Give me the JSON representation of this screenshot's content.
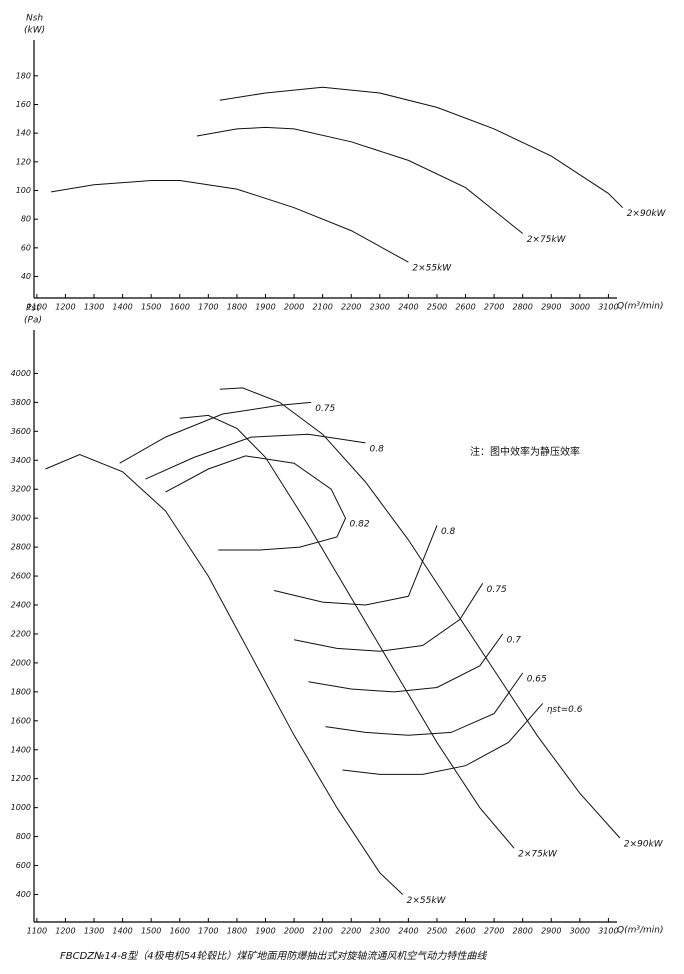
{
  "chart_data": [
    {
      "type": "line",
      "ylabel": "Nsh",
      "yunit": "(kW)",
      "xlabel": "Q(m³/min)",
      "xlim": [
        1090,
        3130
      ],
      "ylim": [
        25,
        205
      ],
      "xticks": [
        1100,
        1200,
        1300,
        1400,
        1500,
        1600,
        1700,
        1800,
        1900,
        2000,
        2100,
        2200,
        2300,
        2400,
        2500,
        2600,
        2700,
        2800,
        2900,
        3000,
        3100
      ],
      "yticks": [
        40,
        60,
        80,
        100,
        120,
        140,
        160,
        180
      ],
      "grid": false,
      "series": [
        {
          "name": "2×55kW",
          "color": "#111",
          "x": [
            1150,
            1300,
            1500,
            1600,
            1800,
            2000,
            2200,
            2400
          ],
          "values": [
            99,
            104,
            107,
            107,
            101,
            88,
            72,
            50
          ]
        },
        {
          "name": "2×75kW",
          "color": "#111",
          "x": [
            1660,
            1800,
            1900,
            2000,
            2200,
            2400,
            2600,
            2800
          ],
          "values": [
            138,
            143,
            144,
            143,
            134,
            121,
            102,
            70
          ]
        },
        {
          "name": "2×90kW",
          "color": "#111",
          "x": [
            1740,
            1900,
            2100,
            2300,
            2500,
            2700,
            2900,
            3100,
            3150
          ],
          "values": [
            163,
            168,
            172,
            168,
            158,
            143,
            124,
            98,
            88
          ]
        }
      ]
    },
    {
      "type": "line",
      "ylabel": "Pst",
      "yunit": "(Pa)",
      "xlabel": "Q(m³/min)",
      "annotation": "注：图中效率为静压效率",
      "xlim": [
        1090,
        3130
      ],
      "ylim": [
        210,
        4300
      ],
      "xticks": [
        1100,
        1200,
        1300,
        1400,
        1500,
        1600,
        1700,
        1800,
        1900,
        2000,
        2100,
        2200,
        2300,
        2400,
        2500,
        2600,
        2700,
        2800,
        2900,
        3000,
        3100
      ],
      "yticks": [
        400,
        600,
        800,
        1000,
        1200,
        1400,
        1600,
        1800,
        2000,
        2200,
        2400,
        2600,
        2800,
        3000,
        3200,
        3400,
        3600,
        3800,
        4000
      ],
      "grid": false,
      "series": [
        {
          "name": "2×55kW",
          "color": "#111",
          "x": [
            1130,
            1250,
            1400,
            1550,
            1700,
            1850,
            2000,
            2150,
            2300,
            2380
          ],
          "values": [
            3340,
            3440,
            3320,
            3050,
            2600,
            2050,
            1500,
            1000,
            550,
            400
          ]
        },
        {
          "name": "2×75kW",
          "color": "#111",
          "x": [
            1600,
            1700,
            1800,
            1900,
            2050,
            2200,
            2350,
            2500,
            2650,
            2770
          ],
          "values": [
            3690,
            3710,
            3620,
            3420,
            2950,
            2450,
            1950,
            1450,
            1000,
            720
          ]
        },
        {
          "name": "2×90kW",
          "color": "#111",
          "x": [
            1740,
            1820,
            1950,
            2100,
            2250,
            2400,
            2550,
            2700,
            2850,
            3000,
            3140
          ],
          "values": [
            3890,
            3900,
            3800,
            3580,
            3250,
            2850,
            2400,
            1950,
            1500,
            1100,
            790
          ]
        },
        {
          "name": "0.75",
          "color": "#111",
          "x": [
            1390,
            1550,
            1750,
            1950,
            2060
          ],
          "values": [
            3380,
            3560,
            3720,
            3780,
            3800
          ]
        },
        {
          "name": "0.8",
          "color": "#111",
          "x": [
            1480,
            1650,
            1850,
            2050,
            2250
          ],
          "values": [
            3270,
            3420,
            3560,
            3580,
            3520
          ]
        },
        {
          "name": "0.82",
          "color": "#111",
          "x": [
            1550,
            1700,
            1830,
            2000,
            2130,
            2180,
            2150,
            2020,
            1880,
            1735
          ],
          "values": [
            3180,
            3340,
            3430,
            3380,
            3200,
            3000,
            2870,
            2800,
            2780,
            2780
          ]
        },
        {
          "name": "0.8",
          "color": "#111",
          "x": [
            1930,
            2100,
            2250,
            2400,
            2500
          ],
          "values": [
            2500,
            2420,
            2400,
            2460,
            2950
          ]
        },
        {
          "name": "0.75",
          "color": "#111",
          "x": [
            2000,
            2150,
            2300,
            2450,
            2580,
            2660
          ],
          "values": [
            2160,
            2100,
            2080,
            2120,
            2300,
            2550
          ]
        },
        {
          "name": "0.7",
          "color": "#111",
          "x": [
            2050,
            2200,
            2350,
            2500,
            2650,
            2730
          ],
          "values": [
            1870,
            1820,
            1800,
            1830,
            1980,
            2200
          ]
        },
        {
          "name": "0.65",
          "color": "#111",
          "x": [
            2110,
            2250,
            2400,
            2550,
            2700,
            2800
          ],
          "values": [
            1560,
            1520,
            1500,
            1520,
            1650,
            1930
          ]
        },
        {
          "name": "ηst=0.6",
          "color": "#111",
          "x": [
            2170,
            2300,
            2450,
            2600,
            2750,
            2870
          ],
          "values": [
            1260,
            1230,
            1230,
            1290,
            1450,
            1720
          ]
        }
      ]
    }
  ],
  "caption": "FBCDZ№14-8型（4极电机54轮毂比）煤矿地面用防爆抽出式对旋轴流通风机空气动力特性曲线"
}
